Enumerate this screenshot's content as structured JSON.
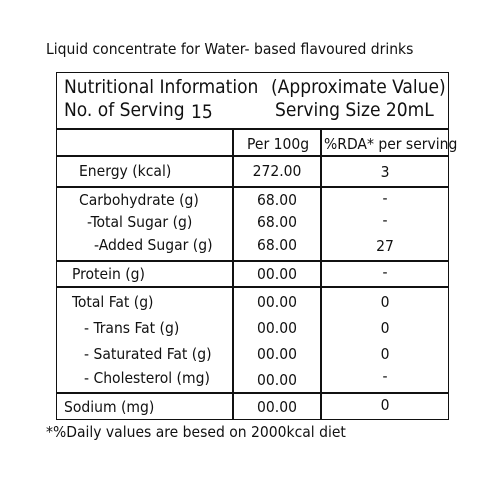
{
  "caption": "Liquid concentrate for Water- based flavoured drinks",
  "header": {
    "title": "Nutritional Information",
    "approx": "(Approximate Value)",
    "servings_label": "No. of Serving",
    "servings_value": "15",
    "serving_size": "Serving Size 20mL"
  },
  "columns": {
    "per100": "Per 100g",
    "rda": "%RDA* per serving"
  },
  "rows": [
    {
      "label": "Energy (kcal)",
      "per100": "272.00",
      "rda": "3"
    },
    {
      "label": "Carbohydrate (g)",
      "per100": "68.00",
      "rda": "-"
    },
    {
      "label": "-Total Sugar (g)",
      "per100": "68.00",
      "rda": "-"
    },
    {
      "label": "-Added Sugar (g)",
      "per100": "68.00",
      "rda": "27"
    },
    {
      "label": "Protein (g)",
      "per100": "00.00",
      "rda": "-"
    },
    {
      "label": "Total Fat (g)",
      "per100": "00.00",
      "rda": "0"
    },
    {
      "label": "- Trans Fat (g)",
      "per100": "00.00",
      "rda": "0"
    },
    {
      "label": "- Saturated Fat (g)",
      "per100": "00.00",
      "rda": "0"
    },
    {
      "label": "- Cholesterol (mg)",
      "per100": "00.00",
      "rda": "-"
    },
    {
      "label": "Sodium (mg)",
      "per100": "00.00",
      "rda": "0"
    }
  ],
  "footnote": "*%Daily values are besed on 2000kcal diet"
}
